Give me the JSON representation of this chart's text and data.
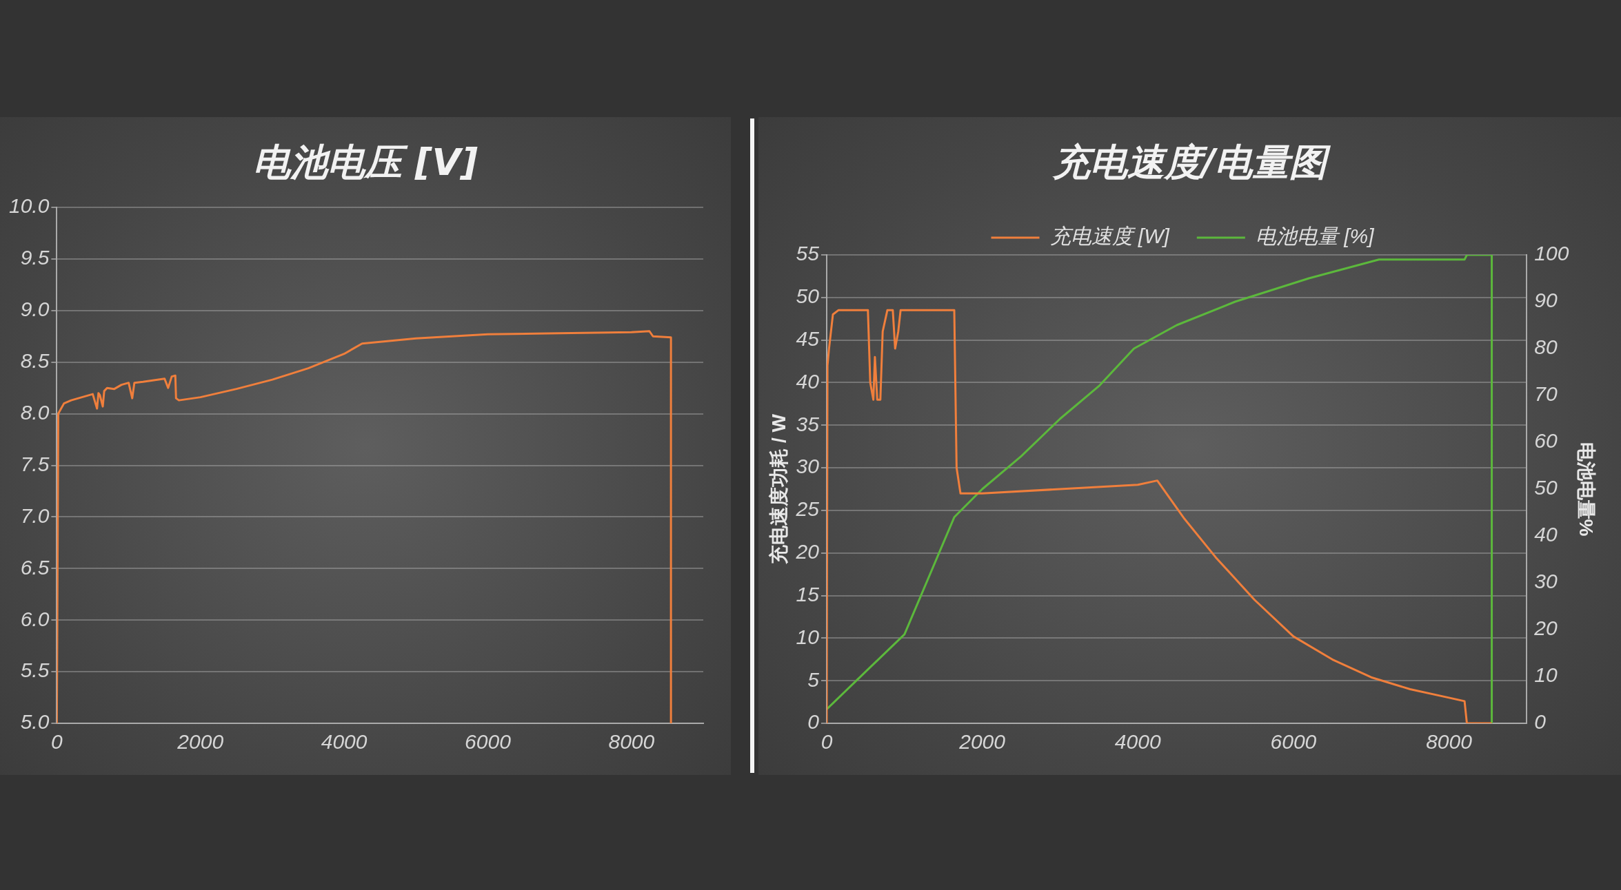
{
  "chart_data": [
    {
      "type": "line",
      "title": "电池电压 [V]",
      "xlim": [
        0,
        9000
      ],
      "xticks": [
        0,
        2000,
        4000,
        6000,
        8000
      ],
      "ylim": [
        5.0,
        10.0
      ],
      "yticks": [
        {
          "value": 5,
          "label": "5.0"
        },
        {
          "value": 5.5,
          "label": "5.5"
        },
        {
          "value": 6,
          "label": "6.0"
        },
        {
          "value": 6.5,
          "label": "6.5"
        },
        {
          "value": 7,
          "label": "7.0"
        },
        {
          "value": 7.5,
          "label": "7.5"
        },
        {
          "value": 8,
          "label": "8.0"
        },
        {
          "value": 8.5,
          "label": "8.5"
        },
        {
          "value": 9,
          "label": "9.0"
        },
        {
          "value": 9.5,
          "label": "9.5"
        },
        {
          "value": 10,
          "label": "10.0"
        }
      ],
      "grid": "y",
      "legend": false,
      "series": [
        {
          "color": "#f07f3c",
          "x": [
            0,
            20,
            100,
            200,
            300,
            400,
            500,
            560,
            580,
            600,
            640,
            660,
            700,
            800,
            900,
            1000,
            1050,
            1080,
            1200,
            1300,
            1400,
            1500,
            1550,
            1600,
            1650,
            1660,
            1700,
            2000,
            2500,
            3000,
            3500,
            4000,
            4250,
            5000,
            5500,
            6000,
            7000,
            8000,
            8250,
            8300,
            8550,
            8550
          ],
          "values": [
            5.0,
            8.0,
            8.1,
            8.13,
            8.15,
            8.17,
            8.19,
            8.05,
            8.2,
            8.18,
            8.07,
            8.22,
            8.25,
            8.24,
            8.28,
            8.3,
            8.15,
            8.3,
            8.31,
            8.32,
            8.33,
            8.34,
            8.25,
            8.36,
            8.37,
            8.15,
            8.13,
            8.16,
            8.24,
            8.33,
            8.44,
            8.58,
            8.68,
            8.73,
            8.75,
            8.77,
            8.78,
            8.79,
            8.8,
            8.75,
            8.74,
            5.0
          ]
        }
      ]
    },
    {
      "type": "line",
      "title": "充电速度/电量图",
      "ylabel": "充电速度功耗 / W",
      "y2label": "电池电量%",
      "xlim": [
        0,
        9000
      ],
      "xticks": [
        0,
        2000,
        4000,
        6000,
        8000
      ],
      "ylim": [
        0,
        55
      ],
      "yticks": [
        0,
        5,
        10,
        15,
        20,
        25,
        30,
        35,
        40,
        45,
        50,
        55
      ],
      "y2lim": [
        0,
        100
      ],
      "y2ticks": [
        0,
        10,
        20,
        30,
        40,
        50,
        60,
        70,
        80,
        90,
        100
      ],
      "grid": "y",
      "legend": "top",
      "series": [
        {
          "name": "充电速度 [W]",
          "color": "#f07f3c",
          "x": [
            0,
            10,
            30,
            80,
            150,
            300,
            530,
            560,
            600,
            620,
            650,
            690,
            720,
            780,
            850,
            880,
            920,
            950,
            1300,
            1640,
            1670,
            1720,
            2000,
            3000,
            4000,
            4250,
            4600,
            5000,
            5500,
            6000,
            6500,
            7000,
            7500,
            8000,
            8200,
            8230,
            8550
          ],
          "values": [
            0,
            42,
            44,
            48,
            48.5,
            48.5,
            48.5,
            40,
            38,
            43,
            38,
            38,
            46,
            48.5,
            48.5,
            44,
            46,
            48.5,
            48.5,
            48.5,
            30,
            27,
            27,
            27.5,
            28,
            28.5,
            24,
            19.5,
            14.5,
            10.2,
            7.5,
            5.4,
            4,
            3,
            2.6,
            0,
            0
          ]
        },
        {
          "name": "电池电量 [%]",
          "color": "#5cb83c",
          "axis": "y2",
          "x": [
            0,
            500,
            1000,
            1640,
            2000,
            2500,
            3000,
            3500,
            3950,
            4500,
            5250,
            6200,
            7100,
            8200,
            8230,
            8550,
            8550
          ],
          "values": [
            3,
            11,
            19,
            44,
            50,
            57,
            65,
            72,
            80,
            85,
            90,
            95,
            99,
            99,
            100,
            100,
            0
          ]
        }
      ]
    }
  ]
}
